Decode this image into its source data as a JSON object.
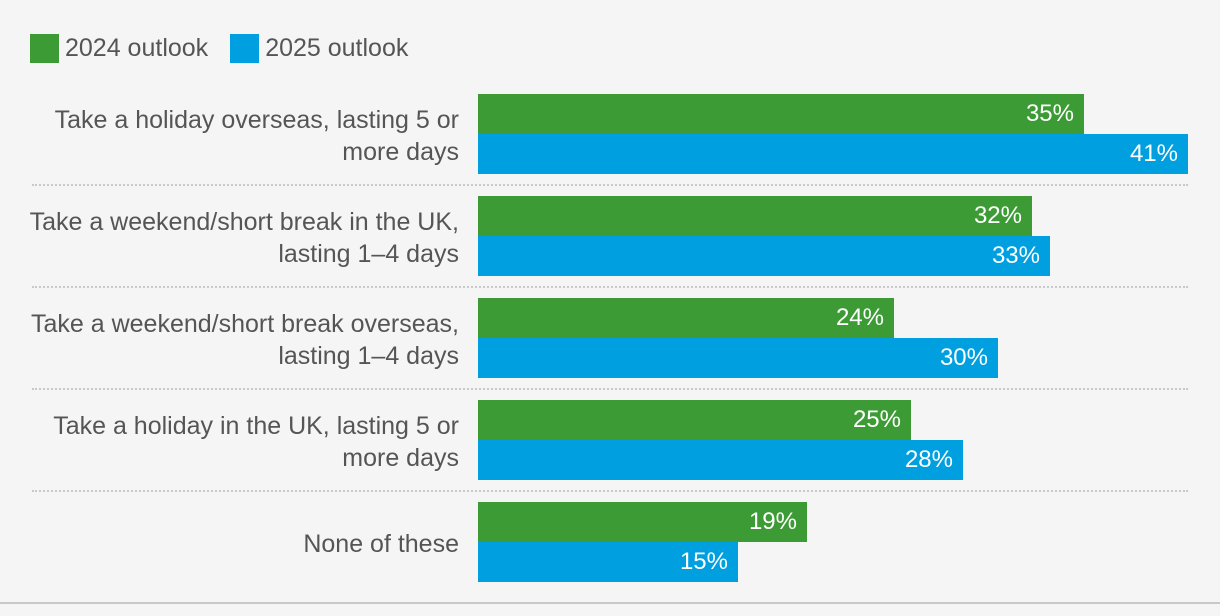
{
  "chart_data": {
    "type": "bar",
    "orientation": "horizontal",
    "categories": [
      "Take a holiday overseas, lasting 5 or more days",
      "Take a weekend/short break in the UK, lasting 1–4 days",
      "Take a weekend/short break overseas, lasting 1–4 days",
      "Take a holiday in the UK, lasting 5 or more days",
      "None of these"
    ],
    "series": [
      {
        "name": "2024 outlook",
        "color": "#3d9b35",
        "values": [
          35,
          32,
          24,
          25,
          19
        ],
        "labels": [
          "35%",
          "32%",
          "24%",
          "25%",
          "19%"
        ]
      },
      {
        "name": "2025 outlook",
        "color": "#009fdf",
        "values": [
          41,
          33,
          30,
          28,
          15
        ],
        "labels": [
          "41%",
          "33%",
          "30%",
          "28%",
          "15%"
        ]
      }
    ],
    "unit": "%",
    "legend_position": "top-left",
    "grid": false
  }
}
